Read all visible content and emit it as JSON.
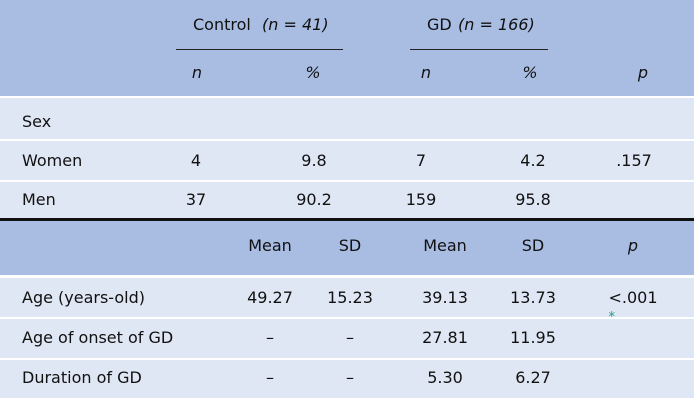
{
  "table1": {
    "groups": [
      {
        "name": "Control",
        "n": "(n = 41)"
      },
      {
        "name": "GD",
        "n": "(n = 166)"
      }
    ],
    "columns": [
      "n",
      "%",
      "n",
      "%",
      "p"
    ],
    "section": "Sex",
    "rows": [
      {
        "label": "Women",
        "cells": [
          "4",
          "9.8",
          "7",
          "4.2",
          ".157"
        ]
      },
      {
        "label": "Men",
        "cells": [
          "37",
          "90.2",
          "159",
          "95.8"
        ]
      }
    ]
  },
  "table2": {
    "columns": [
      "Mean",
      "SD",
      "Mean",
      "SD",
      "p"
    ],
    "rows": [
      {
        "label": "Age (years-old)",
        "cells": [
          "49.27",
          "15.23",
          "39.13",
          "13.73",
          "<.001"
        ],
        "mark": "*"
      },
      {
        "label": "Age of onset of GD",
        "cells": [
          "–",
          "–",
          "27.81",
          "11.95"
        ]
      },
      {
        "label": "Duration of GD",
        "cells": [
          "–",
          "–",
          "5.30",
          "6.27"
        ]
      }
    ]
  }
}
